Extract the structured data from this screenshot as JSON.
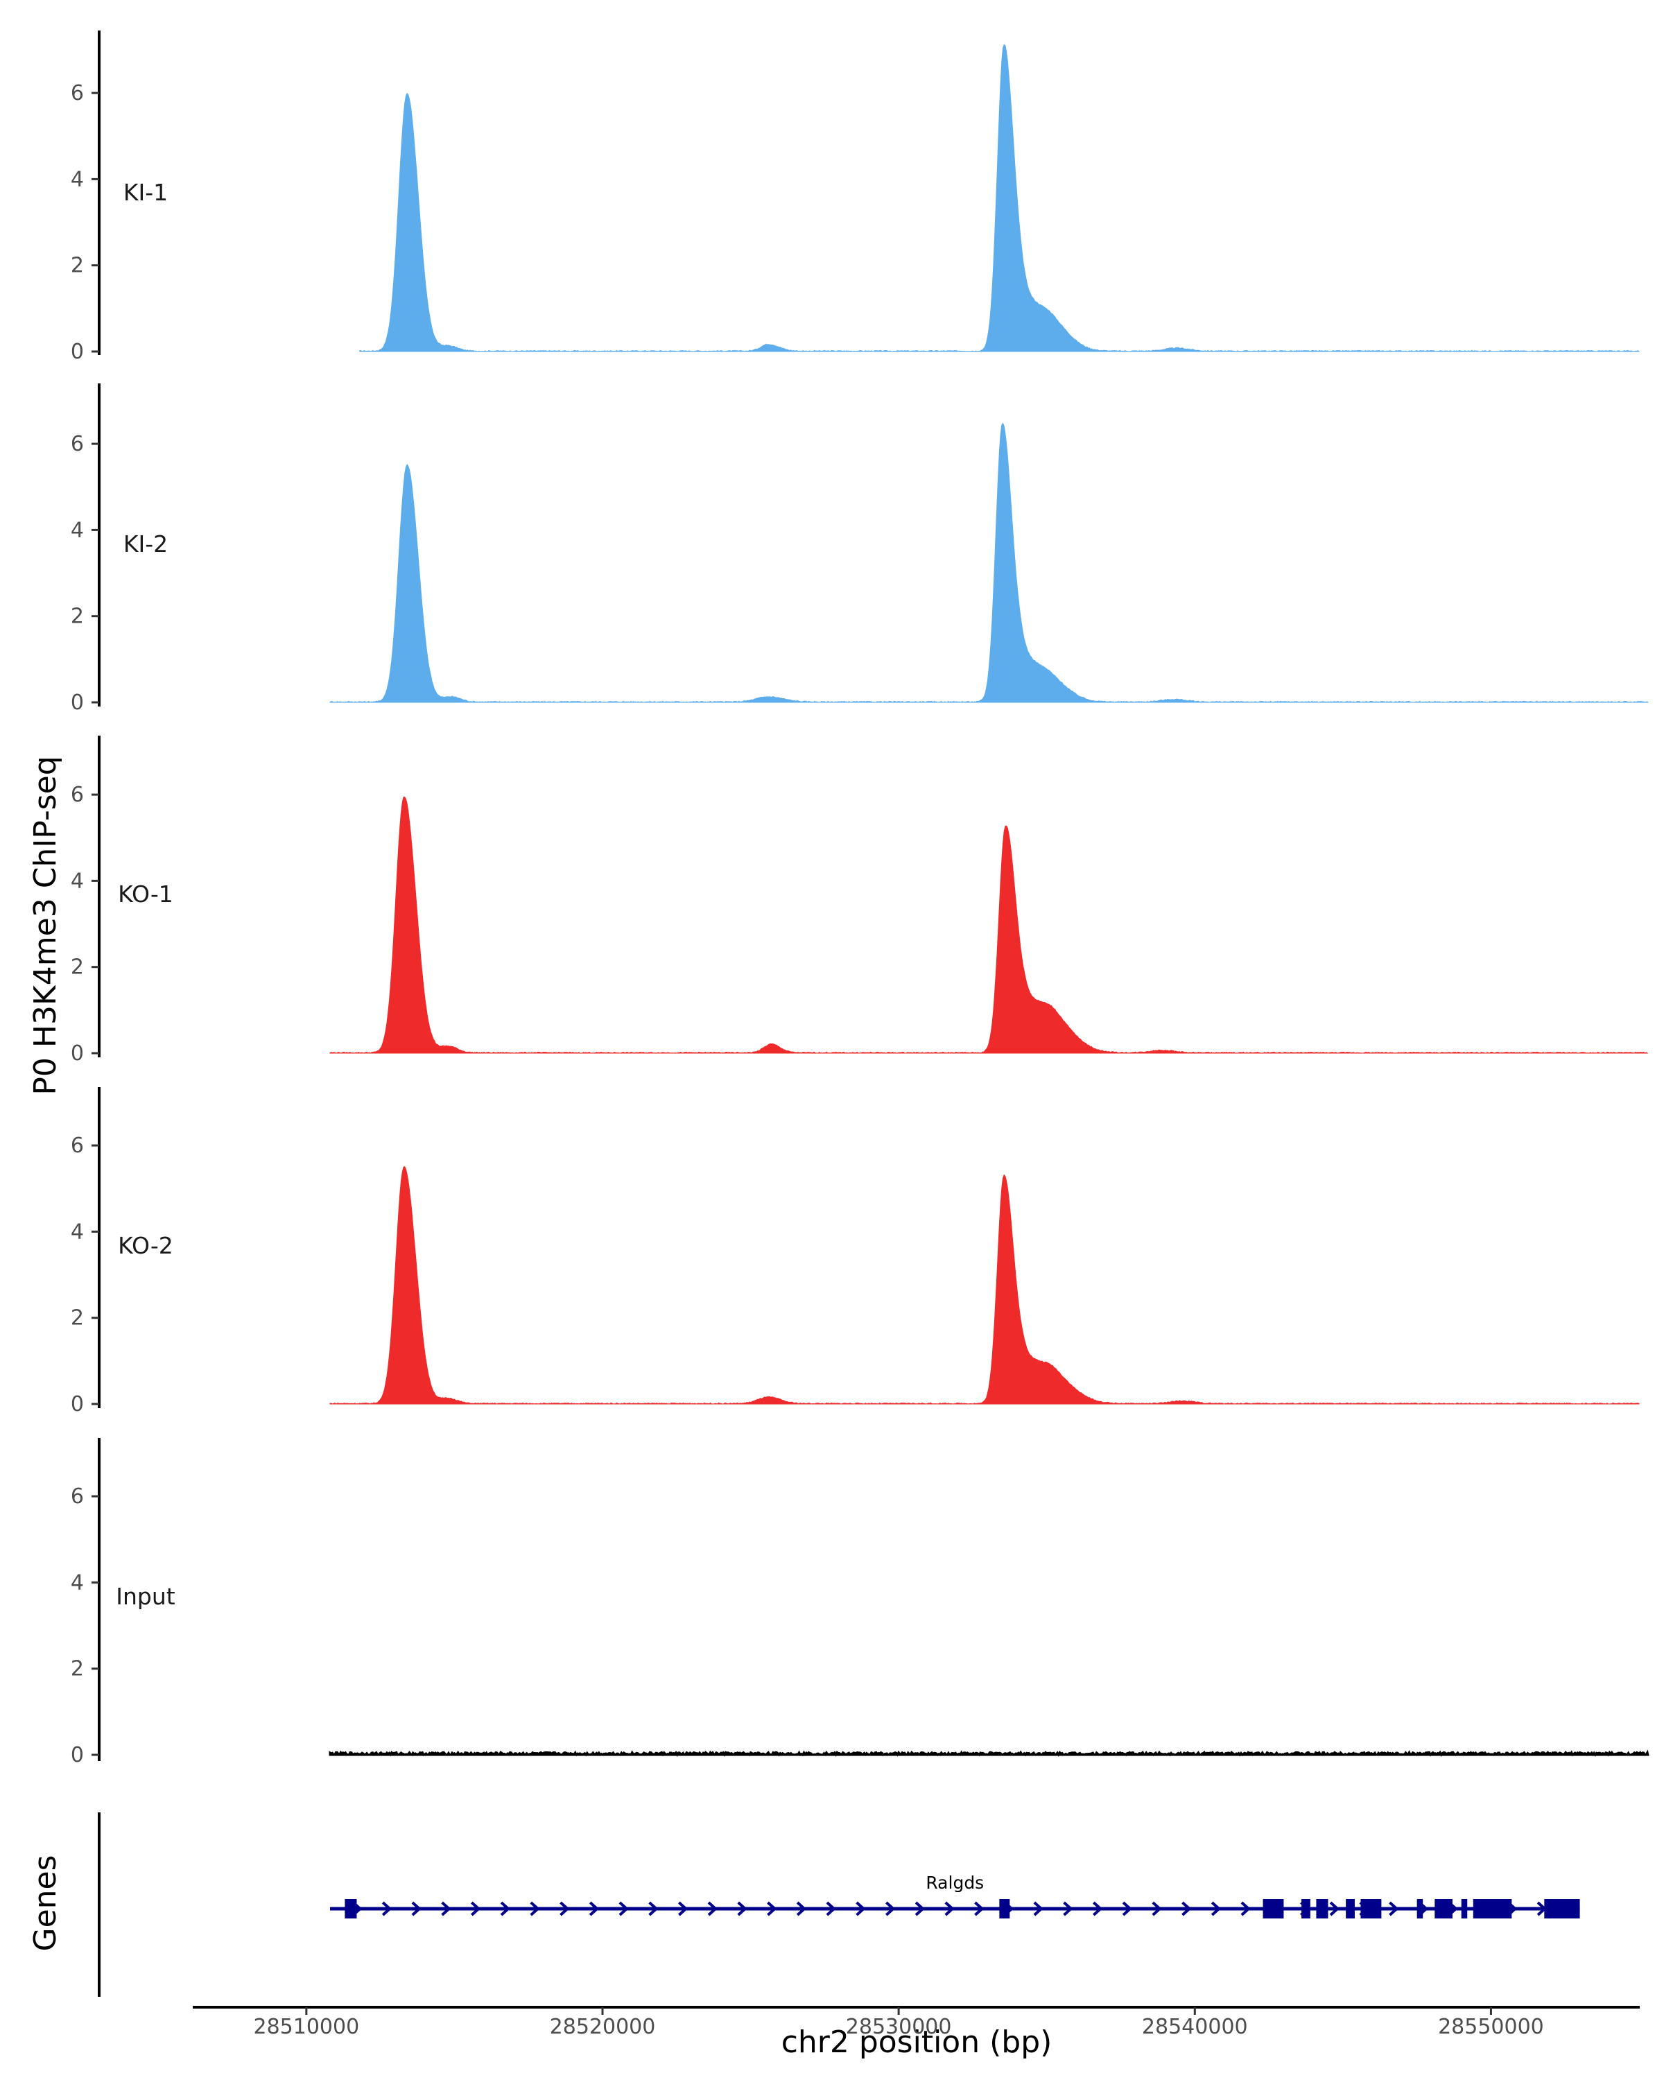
{
  "chart_data": {
    "type": "area",
    "ylabel": "P0 H3K4me3 ChIP-seq",
    "xlabel": "chr2 position (bp)",
    "genes_label": "Genes",
    "xlim": [
      28506000,
      28555000
    ],
    "ylim": [
      0,
      7.3
    ],
    "yticks": [
      0,
      2,
      4,
      6
    ],
    "xticks": [
      28510000,
      28520000,
      28530000,
      28540000,
      28550000
    ],
    "xtick_labels": [
      "28510000",
      "28520000",
      "28530000",
      "28540000",
      "28550000"
    ],
    "data_range": [
      28510800,
      28555300
    ],
    "colors": {
      "KI": "#5DADEC",
      "KO": "#EE2A2A",
      "Input": "#000000",
      "gene": "#00008B",
      "axis": "#000000"
    },
    "tracks": [
      {
        "name": "KI-1",
        "color": "#5DADEC",
        "range": [
          28511800,
          28555000
        ],
        "peaks": [
          {
            "center": 28513400,
            "height": 5.98,
            "sl": 280,
            "sr": 380
          },
          {
            "center": 28514800,
            "height": 0.12,
            "sl": 300,
            "sr": 300
          },
          {
            "center": 28525600,
            "height": 0.16,
            "sl": 250,
            "sr": 350
          },
          {
            "center": 28533550,
            "height": 7.0,
            "sl": 220,
            "sr": 320
          },
          {
            "center": 28534200,
            "height": 1.2,
            "sl": 300,
            "sr": 600
          },
          {
            "center": 28535200,
            "height": 0.55,
            "sl": 400,
            "sr": 600
          },
          {
            "center": 28539400,
            "height": 0.07,
            "sl": 400,
            "sr": 400
          }
        ]
      },
      {
        "name": "KI-2",
        "color": "#5DADEC",
        "range": [
          28510800,
          28555300
        ],
        "peaks": [
          {
            "center": 28513400,
            "height": 5.5,
            "sl": 280,
            "sr": 380
          },
          {
            "center": 28514900,
            "height": 0.12,
            "sl": 300,
            "sr": 300
          },
          {
            "center": 28525600,
            "height": 0.12,
            "sl": 400,
            "sr": 500
          },
          {
            "center": 28533500,
            "height": 6.4,
            "sl": 220,
            "sr": 320
          },
          {
            "center": 28534200,
            "height": 1.0,
            "sl": 300,
            "sr": 600
          },
          {
            "center": 28535200,
            "height": 0.4,
            "sl": 400,
            "sr": 600
          },
          {
            "center": 28539300,
            "height": 0.06,
            "sl": 400,
            "sr": 400
          }
        ]
      },
      {
        "name": "KO-1",
        "color": "#EE2A2A",
        "range": [
          28510800,
          28555300
        ],
        "peaks": [
          {
            "center": 28513300,
            "height": 5.95,
            "sl": 280,
            "sr": 400
          },
          {
            "center": 28514800,
            "height": 0.15,
            "sl": 300,
            "sr": 300
          },
          {
            "center": 28525700,
            "height": 0.2,
            "sl": 250,
            "sr": 300
          },
          {
            "center": 28533600,
            "height": 5.0,
            "sl": 220,
            "sr": 320
          },
          {
            "center": 28534300,
            "height": 1.2,
            "sl": 400,
            "sr": 700
          },
          {
            "center": 28535300,
            "height": 0.55,
            "sl": 400,
            "sr": 700
          },
          {
            "center": 28538900,
            "height": 0.06,
            "sl": 400,
            "sr": 400
          }
        ]
      },
      {
        "name": "KO-2",
        "color": "#EE2A2A",
        "range": [
          28510800,
          28555000
        ],
        "peaks": [
          {
            "center": 28513300,
            "height": 5.5,
            "sl": 280,
            "sr": 400
          },
          {
            "center": 28514800,
            "height": 0.12,
            "sl": 300,
            "sr": 300
          },
          {
            "center": 28525600,
            "height": 0.15,
            "sl": 350,
            "sr": 400
          },
          {
            "center": 28533550,
            "height": 5.2,
            "sl": 220,
            "sr": 320
          },
          {
            "center": 28534300,
            "height": 1.0,
            "sl": 350,
            "sr": 700
          },
          {
            "center": 28535300,
            "height": 0.45,
            "sl": 400,
            "sr": 700
          },
          {
            "center": 28539600,
            "height": 0.06,
            "sl": 400,
            "sr": 400
          }
        ]
      },
      {
        "name": "Input",
        "color": "#000000",
        "range": [
          28510800,
          28555300
        ],
        "peaks": []
      }
    ],
    "gene": {
      "name": "Ralgds",
      "start": 28510800,
      "end": 28553000,
      "exons": [
        [
          28511300,
          28511700
        ],
        [
          28533400,
          28533750
        ],
        [
          28542300,
          28543000
        ],
        [
          28543600,
          28543900
        ],
        [
          28544100,
          28544500
        ],
        [
          28545100,
          28545400
        ],
        [
          28545600,
          28546300
        ],
        [
          28547500,
          28547700
        ],
        [
          28548100,
          28548700
        ],
        [
          28549000,
          28549200
        ],
        [
          28549400,
          28550700
        ],
        [
          28551800,
          28553000
        ]
      ]
    }
  }
}
